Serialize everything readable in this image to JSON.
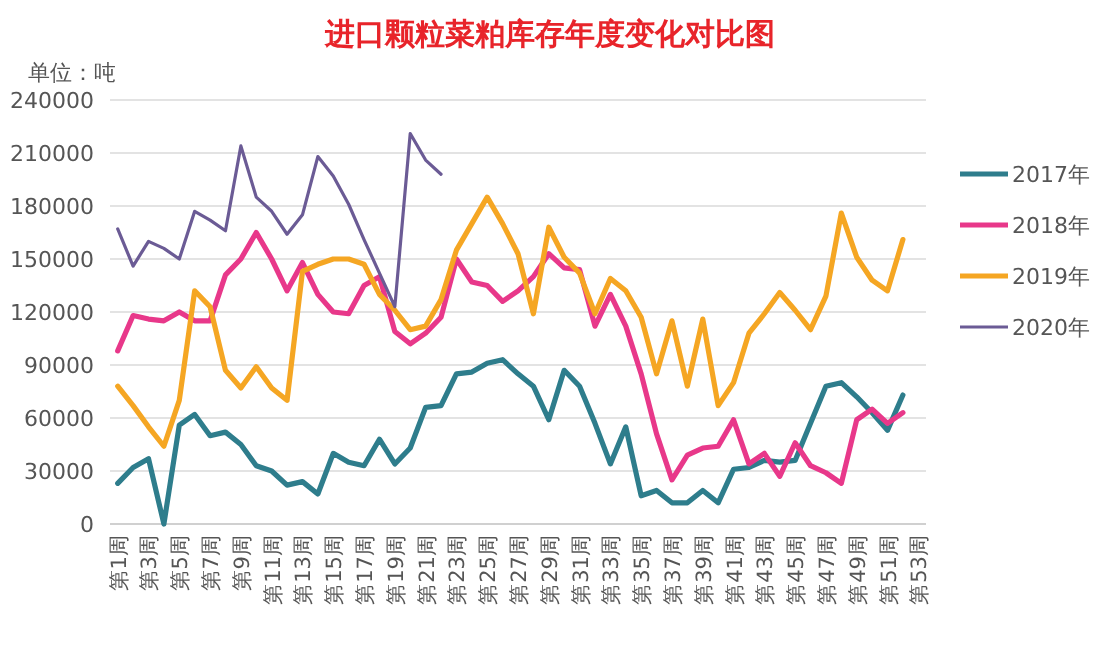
{
  "chart_data": {
    "type": "line",
    "title": "进口颗粒菜粕库存年度变化对比图",
    "annotations": [
      "单位：吨"
    ],
    "categories": [
      "第1周",
      null,
      "第3周",
      null,
      "第5周",
      null,
      "第7周",
      null,
      "第9周",
      null,
      "第11周",
      null,
      "第13周",
      null,
      "第15周",
      null,
      "第17周",
      null,
      "第19周",
      null,
      "第21周",
      null,
      "第23周",
      null,
      "第25周",
      null,
      "第27周",
      null,
      "第29周",
      null,
      "第31周",
      null,
      "第33周",
      null,
      "第35周",
      null,
      "第37周",
      null,
      "第39周",
      null,
      "第41周",
      null,
      "第43周",
      null,
      "第45周",
      null,
      "第47周",
      null,
      "第49周",
      null,
      "第51周",
      null,
      "第53周"
    ],
    "ylim": [
      0,
      240000
    ],
    "yticks": [
      0,
      30000,
      60000,
      90000,
      120000,
      150000,
      180000,
      210000,
      240000
    ],
    "grid": "y",
    "legend": "right",
    "marker": "none",
    "line_style": "solid",
    "series": [
      {
        "name": "2017年",
        "color": "#2e7d8c",
        "values": [
          23000,
          32000,
          37000,
          0,
          56000,
          62000,
          50000,
          52000,
          45000,
          33000,
          30000,
          22000,
          24000,
          17000,
          40000,
          35000,
          33000,
          48000,
          34000,
          43000,
          66000,
          67000,
          85000,
          86000,
          91000,
          93000,
          85000,
          78000,
          59000,
          87000,
          78000,
          57000,
          34000,
          55000,
          16000,
          19000,
          12000,
          12000,
          19000,
          12000,
          31000,
          32000,
          36000,
          35000,
          36000,
          57000,
          78000,
          80000,
          72000,
          63000,
          53000,
          73000,
          null
        ]
      },
      {
        "name": "2018年",
        "color": "#e8388a",
        "values": [
          98000,
          118000,
          116000,
          115000,
          120000,
          115000,
          115000,
          141000,
          150000,
          165000,
          150000,
          132000,
          148000,
          130000,
          120000,
          119000,
          135000,
          140000,
          109000,
          102000,
          108000,
          117000,
          150000,
          137000,
          135000,
          126000,
          132000,
          140000,
          153000,
          145000,
          144000,
          112000,
          130000,
          112000,
          85000,
          51000,
          25000,
          39000,
          43000,
          44000,
          59000,
          34000,
          40000,
          27000,
          46000,
          33000,
          29000,
          23000,
          59000,
          65000,
          57000,
          63000,
          null
        ]
      },
      {
        "name": "2019年",
        "color": "#f5a623",
        "values": [
          78000,
          67000,
          55000,
          44000,
          70000,
          132000,
          123000,
          87000,
          77000,
          89000,
          77000,
          70000,
          143000,
          147000,
          150000,
          150000,
          147000,
          130000,
          121000,
          110000,
          112000,
          127000,
          155000,
          170000,
          185000,
          170000,
          153000,
          119000,
          168000,
          151000,
          142000,
          119000,
          139000,
          132000,
          117000,
          85000,
          115000,
          78000,
          116000,
          67000,
          80000,
          108000,
          119000,
          131000,
          121000,
          110000,
          129000,
          176000,
          151000,
          138000,
          132000,
          161000,
          null
        ]
      },
      {
        "name": "2020年",
        "color": "#6b5b95",
        "values": [
          167000,
          146000,
          160000,
          156000,
          150000,
          177000,
          172000,
          166000,
          214000,
          185000,
          177000,
          164000,
          175000,
          208000,
          197000,
          181000,
          161000,
          142000,
          123000,
          221000,
          206000,
          198000,
          null,
          null,
          null,
          null,
          null,
          null,
          null,
          null,
          null,
          null,
          null,
          null,
          null,
          null,
          null,
          null,
          null,
          null,
          null,
          null,
          null,
          null,
          null,
          null,
          null,
          null,
          null,
          null,
          null,
          null,
          null
        ]
      }
    ]
  }
}
